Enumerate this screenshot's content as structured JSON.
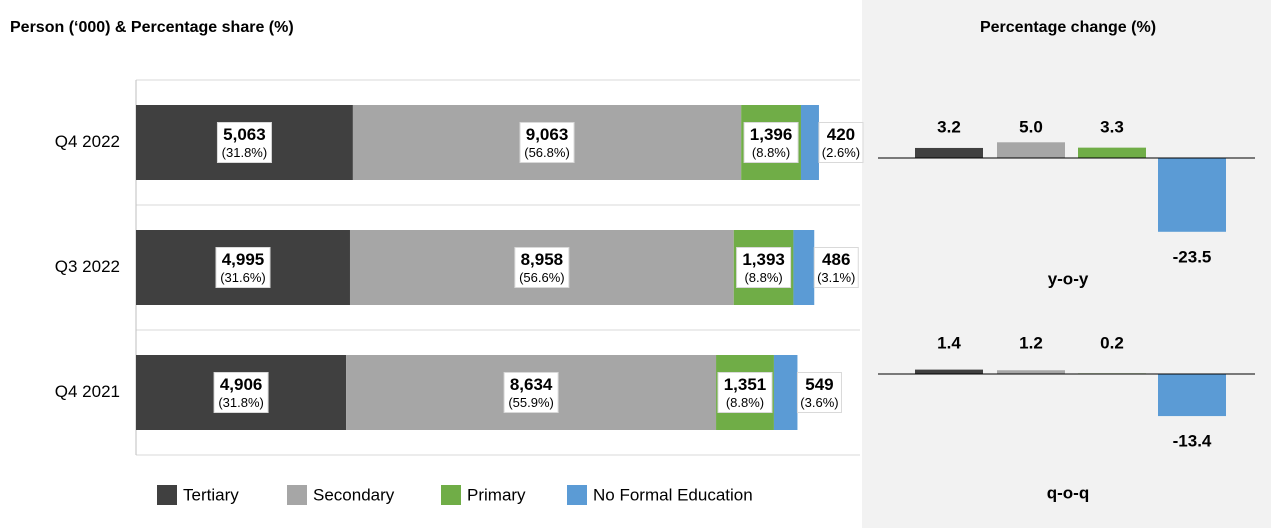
{
  "chart_data": [
    {
      "type": "stacked_bar_h",
      "title": "Person (‘000) & Percentage share (%)",
      "categories": [
        "Q4 2022",
        "Q3 2022",
        "Q4 2021"
      ],
      "xlim": [
        0,
        16900
      ],
      "series": [
        {
          "name": "Tertiary",
          "color": "#404040",
          "values": [
            5063,
            4995,
            4906
          ],
          "value_labels": [
            "5,063",
            "4,995",
            "4,906"
          ],
          "shares": [
            31.8,
            31.6,
            31.8
          ],
          "share_labels": [
            "(31.8%)",
            "(31.6%)",
            "(31.8%)"
          ]
        },
        {
          "name": "Secondary",
          "color": "#a6a6a6",
          "values": [
            9063,
            8958,
            8634
          ],
          "value_labels": [
            "9,063",
            "8,958",
            "8,634"
          ],
          "shares": [
            56.8,
            56.6,
            55.9
          ],
          "share_labels": [
            "(56.8%)",
            "(56.6%)",
            "(55.9%)"
          ]
        },
        {
          "name": "Primary",
          "color": "#70ad47",
          "values": [
            1396,
            1393,
            1351
          ],
          "value_labels": [
            "1,396",
            "1,393",
            "1,351"
          ],
          "shares": [
            8.8,
            8.8,
            8.8
          ],
          "share_labels": [
            "(8.8%)",
            "(8.8%)",
            "(8.8%)"
          ]
        },
        {
          "name": "No Formal Education",
          "color": "#5b9bd5",
          "values": [
            420,
            486,
            549
          ],
          "value_labels": [
            "420",
            "486",
            "549"
          ],
          "shares": [
            2.6,
            3.1,
            3.6
          ],
          "share_labels": [
            "(2.6%)",
            "(3.1%)",
            "(3.6%)"
          ]
        }
      ]
    },
    {
      "type": "bar",
      "title": "Percentage change (%)",
      "xlabel": "y-o-y",
      "values": [
        3.2,
        5.0,
        3.3,
        -23.5
      ],
      "value_labels": [
        "3.2",
        "5.0",
        "3.3",
        "-23.5"
      ],
      "colors": [
        "#404040",
        "#a6a6a6",
        "#70ad47",
        "#5b9bd5"
      ],
      "ylim": [
        -25,
        8
      ]
    },
    {
      "type": "bar",
      "xlabel": "q-o-q",
      "values": [
        1.4,
        1.2,
        0.2,
        -13.4
      ],
      "value_labels": [
        "1.4",
        "1.2",
        "0.2",
        "-13.4"
      ],
      "colors": [
        "#404040",
        "#a6a6a6",
        "#70ad47",
        "#5b9bd5"
      ],
      "ylim": [
        -25,
        8
      ]
    }
  ]
}
